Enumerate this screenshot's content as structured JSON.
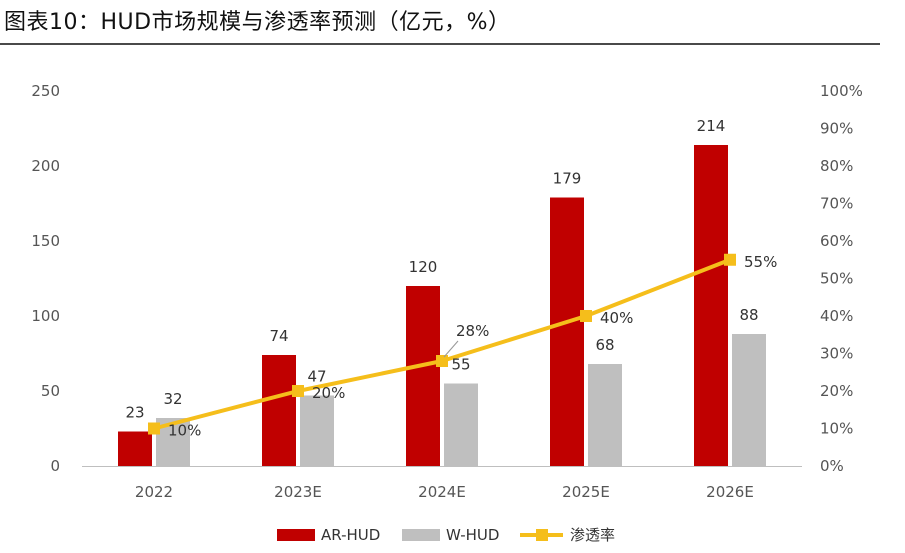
{
  "title": "图表10：HUD市场规模与渗透率预测（亿元，%）",
  "chart_data": {
    "type": "bar",
    "title": "图表10：HUD市场规模与渗透率预测（亿元，%）",
    "categories": [
      "2022",
      "2023E",
      "2024E",
      "2025E",
      "2026E"
    ],
    "series": [
      {
        "name": "AR-HUD",
        "type": "bar",
        "axis": "left",
        "color": "#C00000",
        "values": [
          23,
          74,
          120,
          179,
          214
        ]
      },
      {
        "name": "W-HUD",
        "type": "bar",
        "axis": "left",
        "color": "#BFBFBF",
        "values": [
          32,
          47,
          55,
          68,
          88
        ]
      },
      {
        "name": "渗透率",
        "type": "line",
        "axis": "right",
        "color": "#F5BE1B",
        "values": [
          10,
          20,
          28,
          40,
          55
        ],
        "labels": [
          "10%",
          "20%",
          "28%",
          "40%",
          "55%"
        ]
      }
    ],
    "y_left": {
      "min": 0,
      "max": 250,
      "ticks": [
        "0",
        "50",
        "100",
        "150",
        "200",
        "250"
      ]
    },
    "y_right": {
      "min": 0,
      "max": 100,
      "ticks": [
        "0%",
        "10%",
        "20%",
        "30%",
        "40%",
        "50%",
        "60%",
        "70%",
        "80%",
        "90%",
        "100%"
      ]
    },
    "grid": false,
    "legend_position": "bottom-center"
  }
}
